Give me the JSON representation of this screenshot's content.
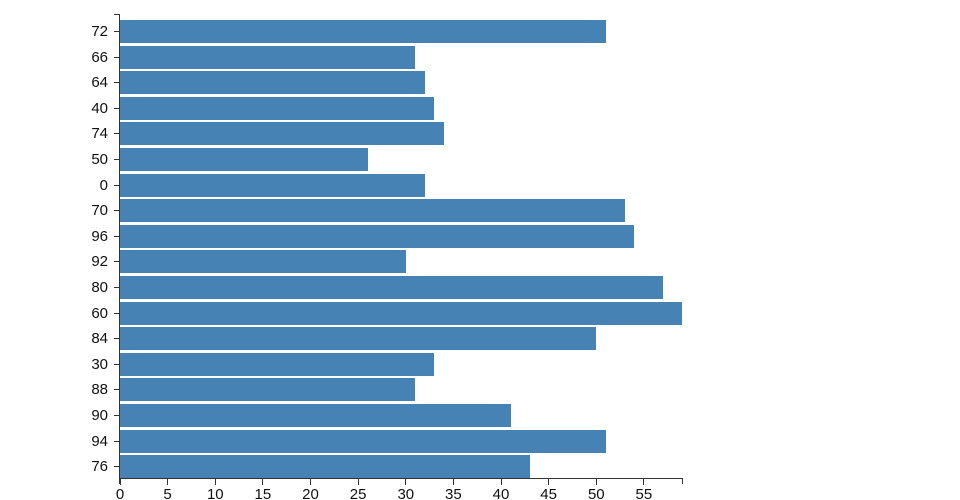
{
  "chart_data": {
    "type": "bar",
    "orientation": "horizontal",
    "title": "",
    "xlabel": "",
    "ylabel": "",
    "categories": [
      "72",
      "66",
      "64",
      "40",
      "74",
      "50",
      "0",
      "70",
      "96",
      "92",
      "80",
      "60",
      "84",
      "30",
      "88",
      "90",
      "94",
      "76"
    ],
    "values": [
      51,
      31,
      32,
      33,
      34,
      26,
      32,
      53,
      54,
      30,
      57,
      59,
      50,
      33,
      31,
      41,
      51,
      43
    ],
    "xlim": [
      0,
      59
    ],
    "x_ticks": [
      0,
      5,
      10,
      15,
      20,
      25,
      30,
      35,
      40,
      45,
      50,
      55
    ],
    "grid": false,
    "legend": false,
    "colors": {
      "bar": "#4682b4",
      "axis": "#333333",
      "tick_label": "#111111",
      "background": "#ffffff"
    }
  }
}
